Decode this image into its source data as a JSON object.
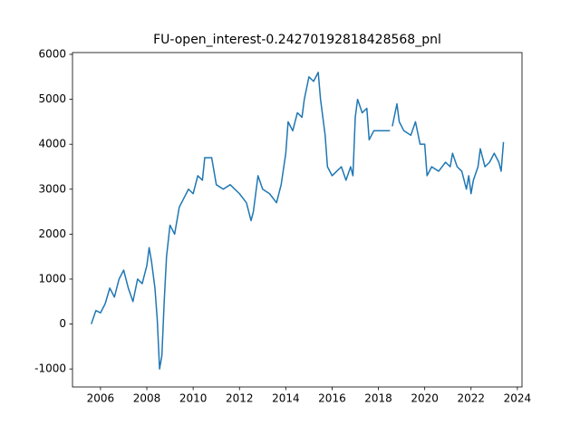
{
  "chart_data": {
    "type": "line",
    "title": "FU-open_interest-0.24270192818428568_pnl",
    "x": [
      2005.6,
      2005.8,
      2006.0,
      2006.2,
      2006.4,
      2006.6,
      2006.8,
      2007.0,
      2007.2,
      2007.4,
      2007.6,
      2007.8,
      2008.0,
      2008.1,
      2008.2,
      2008.35,
      2008.45,
      2008.55,
      2008.65,
      2008.75,
      2008.85,
      2009.0,
      2009.2,
      2009.4,
      2009.6,
      2009.8,
      2010.0,
      2010.2,
      2010.4,
      2010.5,
      2010.8,
      2011.0,
      2011.3,
      2011.6,
      2012.0,
      2012.3,
      2012.5,
      2012.6,
      2012.8,
      2013.0,
      2013.3,
      2013.6,
      2013.8,
      2014.0,
      2014.1,
      2014.3,
      2014.5,
      2014.7,
      2014.8,
      2015.0,
      2015.2,
      2015.4,
      2015.5,
      2015.7,
      2015.8,
      2016.0,
      2016.2,
      2016.4,
      2016.6,
      2016.8,
      2016.9,
      2017.0,
      2017.1,
      2017.3,
      2017.5,
      2017.6,
      2017.8,
      2018.5,
      2018.55,
      2018.6,
      2018.8,
      2018.9,
      2019.1,
      2019.4,
      2019.6,
      2019.8,
      2020.0,
      2020.1,
      2020.3,
      2020.6,
      2020.9,
      2021.1,
      2021.2,
      2021.4,
      2021.6,
      2021.8,
      2021.9,
      2022.0,
      2022.1,
      2022.3,
      2022.4,
      2022.6,
      2022.8,
      2023.0,
      2023.2,
      2023.3,
      2023.4
    ],
    "values": [
      0,
      300,
      250,
      450,
      800,
      600,
      1000,
      1200,
      800,
      500,
      1000,
      900,
      1300,
      1700,
      1400,
      800,
      100,
      -1000,
      -700,
      500,
      1500,
      2200,
      2000,
      2600,
      2800,
      3000,
      2900,
      3300,
      3200,
      3700,
      3700,
      3100,
      3000,
      3100,
      2900,
      2700,
      2300,
      2500,
      3300,
      3000,
      2900,
      2700,
      3100,
      3800,
      4500,
      4300,
      4700,
      4600,
      5000,
      5500,
      5400,
      5600,
      5000,
      4200,
      3500,
      3300,
      3400,
      3500,
      3200,
      3500,
      3300,
      4600,
      5000,
      4700,
      4800,
      4100,
      4300,
      4300,
      null,
      4400,
      4900,
      4500,
      4300,
      4200,
      4500,
      4000,
      4000,
      3300,
      3500,
      3400,
      3600,
      3500,
      3800,
      3500,
      3400,
      3000,
      3300,
      2900,
      3200,
      3500,
      3900,
      3500,
      3600,
      3800,
      3600,
      3400,
      4050
    ],
    "color": "#1f77b4",
    "xlim": [
      2004.79,
      2024.2
    ],
    "xticks": [
      2006,
      2008,
      2010,
      2012,
      2014,
      2016,
      2018,
      2020,
      2022,
      2024
    ],
    "ylim": [
      -1400,
      6040
    ],
    "yticks": [
      -1000,
      0,
      1000,
      2000,
      3000,
      4000,
      5000,
      6000
    ]
  }
}
